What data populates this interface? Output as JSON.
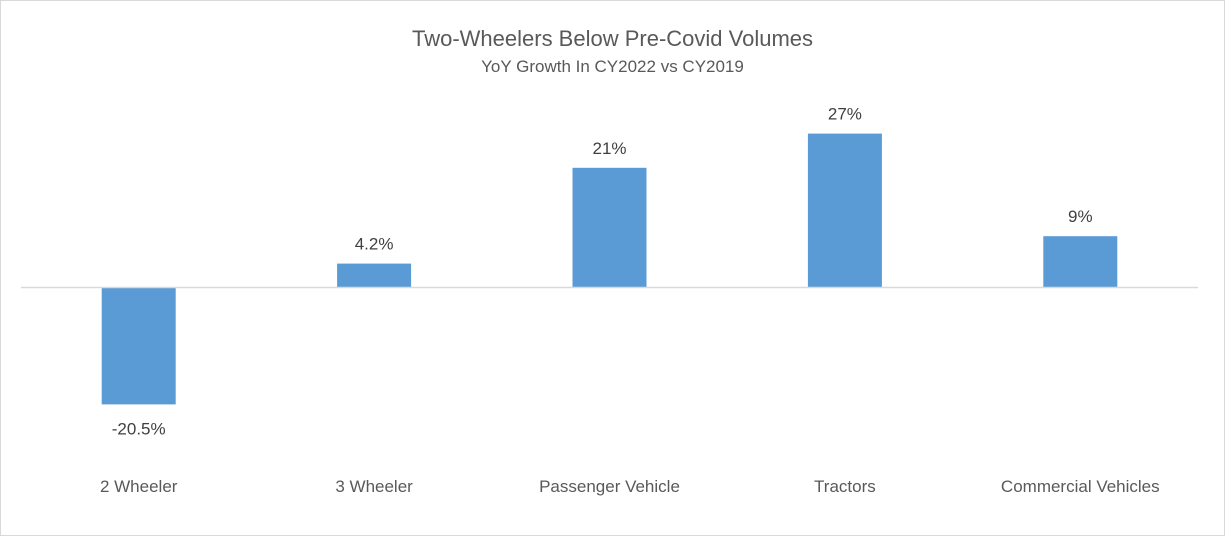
{
  "chart_data": {
    "type": "bar",
    "title": "Two-Wheelers Below Pre-Covid Volumes",
    "subtitle": "YoY Growth In CY2022 vs CY2019",
    "categories": [
      "2 Wheeler",
      "3 Wheeler",
      "Passenger Vehicle",
      "Tractors",
      "Commercial Vehicles"
    ],
    "values": [
      -20.5,
      4.2,
      21,
      27,
      9
    ],
    "data_labels": [
      "-20.5%",
      "4.2%",
      "21%",
      "27%",
      "9%"
    ],
    "xlabel": "",
    "ylabel": "",
    "ylim": [
      -30,
      35
    ],
    "grid": false,
    "legend": "none",
    "bar_color": "#5b9bd5",
    "axis_color": "#d9d9d9",
    "text_color": "#595959"
  }
}
